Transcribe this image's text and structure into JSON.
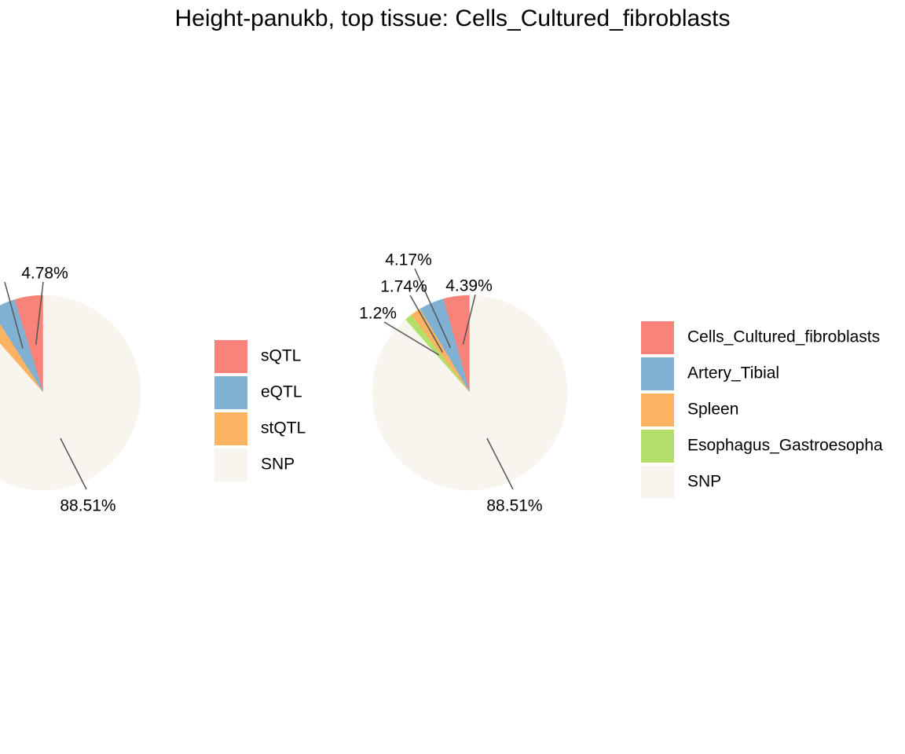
{
  "title": "Height-panukb, top tissue: Cells_Cultured_fibroblasts",
  "chart_data": [
    {
      "type": "pie",
      "title": "",
      "slices": [
        {
          "label": "sQTL",
          "value": 4.78,
          "display": "4.78%",
          "color": "#F8837A"
        },
        {
          "label": "eQTL",
          "value": 4.17,
          "display": "",
          "color": "#80B1D3"
        },
        {
          "label": "stQTL",
          "value": 2.54,
          "display": "",
          "color": "#FDB462"
        },
        {
          "label": "SNP",
          "value": 88.51,
          "display": "88.51%",
          "color": "#F8F4EE"
        }
      ],
      "legend": [
        "sQTL",
        "eQTL",
        "stQTL",
        "SNP"
      ],
      "legend_position": "right"
    },
    {
      "type": "pie",
      "title": "",
      "slices": [
        {
          "label": "Cells_Cultured_fibroblasts",
          "value": 4.39,
          "display": "4.39%",
          "color": "#F8837A"
        },
        {
          "label": "Artery_Tibial",
          "value": 4.17,
          "display": "4.17%",
          "color": "#80B1D3"
        },
        {
          "label": "Spleen",
          "value": 1.74,
          "display": "1.74%",
          "color": "#FDB462"
        },
        {
          "label": "Esophagus_Gastroesophageal_Junction",
          "value": 1.2,
          "display": "1.2%",
          "color": "#B3DE69"
        },
        {
          "label": "SNP",
          "value": 88.51,
          "display": "88.51%",
          "color": "#F8F4EE"
        }
      ],
      "legend": [
        "Cells_Cultured_fibroblasts",
        "Artery_Tibial",
        "Spleen",
        "Esophagus_Gastroesopha",
        "SNP"
      ],
      "legend_position": "right"
    }
  ]
}
